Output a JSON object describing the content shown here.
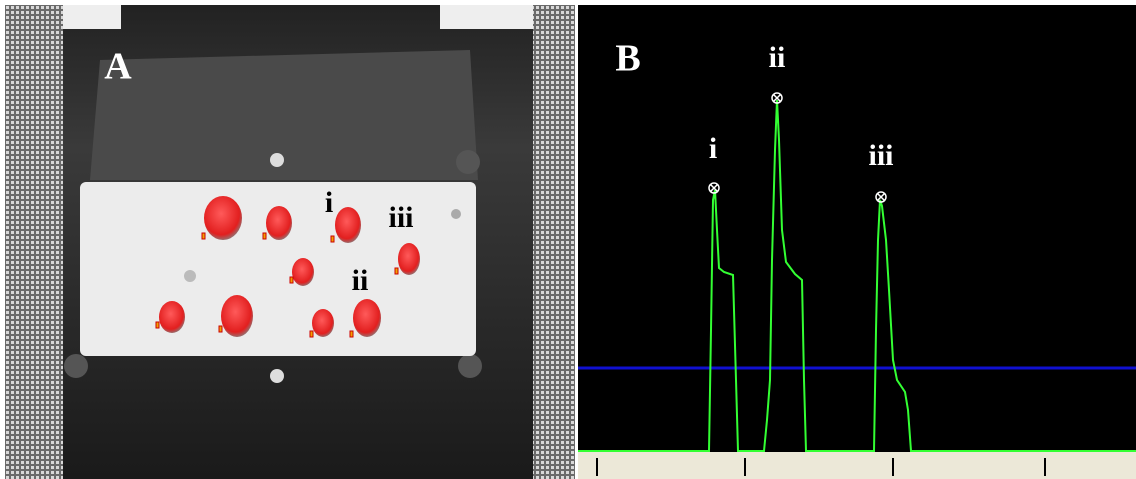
{
  "panel_a": {
    "label": "A",
    "annotations": [
      "i",
      "ii",
      "iii"
    ]
  },
  "panel_b": {
    "label": "B",
    "peaks": [
      "i",
      "ii",
      "iii"
    ]
  }
}
